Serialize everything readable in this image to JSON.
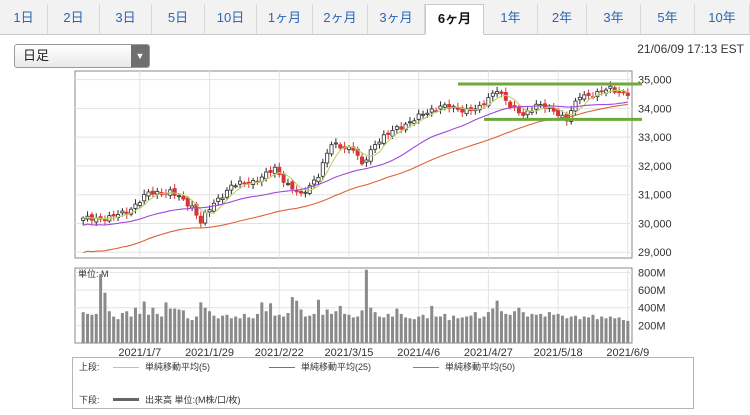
{
  "tabs": [
    {
      "label": "1日",
      "active": false
    },
    {
      "label": "2日",
      "active": false
    },
    {
      "label": "3日",
      "active": false
    },
    {
      "label": "5日",
      "active": false
    },
    {
      "label": "10日",
      "active": false
    },
    {
      "label": "1ヶ月",
      "active": false
    },
    {
      "label": "2ヶ月",
      "active": false
    },
    {
      "label": "3ヶ月",
      "active": false
    },
    {
      "label": "6ヶ月",
      "active": true
    },
    {
      "label": "1年",
      "active": false
    },
    {
      "label": "2年",
      "active": false
    },
    {
      "label": "3年",
      "active": false
    },
    {
      "label": "5年",
      "active": false
    },
    {
      "label": "10年",
      "active": false
    }
  ],
  "period_select": {
    "value": "日足"
  },
  "timestamp": "21/06/09 17:13 EST",
  "legend": {
    "upper_label": "上段:",
    "lower_label": "下段:",
    "items": [
      {
        "label": "単純移動平均(5)",
        "color": "#b9d36a"
      },
      {
        "label": "単純移動平均(25)",
        "color": "#a04ad8"
      },
      {
        "label": "単純移動平均(50)",
        "color": "#e0623a"
      }
    ],
    "volume_label": "出来高 単位:(M株/口/枚)"
  },
  "chart_data": [
    {
      "type": "candlestick",
      "y_ticks": [
        29000,
        30000,
        31000,
        32000,
        33000,
        34000,
        35000
      ],
      "y_tick_labels": [
        "29,000",
        "30,000",
        "31,000",
        "32,000",
        "33,000",
        "34,000",
        "35,000"
      ],
      "ylim": [
        28800,
        35300
      ],
      "x_tick_labels": [
        "2021/1/7",
        "2021/1/29",
        "2021/2/22",
        "2021/3/15",
        "2021/4/6",
        "2021/4/27",
        "2021/5/18",
        "2021/6/9"
      ],
      "x_tick_index": [
        13,
        29,
        45,
        61,
        77,
        93,
        109,
        125
      ],
      "bars_count": 126,
      "close_anchors": [
        [
          0,
          30150
        ],
        [
          6,
          30200
        ],
        [
          10,
          30400
        ],
        [
          15,
          31050
        ],
        [
          20,
          31100
        ],
        [
          25,
          30600
        ],
        [
          27,
          30050
        ],
        [
          30,
          30700
        ],
        [
          34,
          31300
        ],
        [
          40,
          31500
        ],
        [
          44,
          31900
        ],
        [
          47,
          31350
        ],
        [
          50,
          30950
        ],
        [
          54,
          31700
        ],
        [
          57,
          32750
        ],
        [
          62,
          32600
        ],
        [
          64,
          32000
        ],
        [
          67,
          32800
        ],
        [
          72,
          33300
        ],
        [
          77,
          33700
        ],
        [
          82,
          34100
        ],
        [
          86,
          33950
        ],
        [
          91,
          34000
        ],
        [
          95,
          34700
        ],
        [
          98,
          34050
        ],
        [
          101,
          33800
        ],
        [
          104,
          34100
        ],
        [
          108,
          33950
        ],
        [
          111,
          33600
        ],
        [
          114,
          34450
        ],
        [
          118,
          34500
        ],
        [
          121,
          34700
        ],
        [
          125,
          34500
        ]
      ],
      "guide_lines": [
        {
          "y": 34850,
          "from": 86,
          "to": 126
        },
        {
          "y": 33620,
          "from": 92,
          "to": 126
        }
      ],
      "guide_color": "#6ea83a",
      "ma": [
        {
          "period": 5,
          "color": "#b9d36a"
        },
        {
          "period": 25,
          "color": "#a04ad8"
        },
        {
          "period": 50,
          "color": "#e0623a"
        }
      ],
      "up_color": "#2b2b2b",
      "down_color": "#d73434"
    },
    {
      "type": "bar",
      "title": "単位: M",
      "y_ticks": [
        200,
        400,
        600,
        800
      ],
      "y_tick_labels": [
        "200M",
        "400M",
        "600M",
        "800M"
      ],
      "ylim": [
        0,
        850
      ],
      "values": [
        350,
        330,
        320,
        330,
        780,
        570,
        360,
        300,
        270,
        340,
        360,
        300,
        400,
        330,
        470,
        320,
        400,
        330,
        300,
        460,
        390,
        390,
        380,
        370,
        280,
        260,
        300,
        460,
        400,
        360,
        310,
        280,
        310,
        320,
        280,
        300,
        280,
        330,
        290,
        280,
        330,
        460,
        360,
        450,
        310,
        320,
        300,
        340,
        520,
        480,
        380,
        300,
        310,
        330,
        490,
        320,
        380,
        330,
        360,
        420,
        330,
        320,
        290,
        300,
        370,
        830,
        400,
        350,
        300,
        290,
        330,
        300,
        390,
        330,
        290,
        280,
        270,
        300,
        320,
        280,
        420,
        300,
        300,
        330,
        260,
        310,
        280,
        290,
        300,
        310,
        350,
        280,
        300,
        350,
        390,
        480,
        360,
        330,
        320,
        360,
        400,
        350,
        300,
        330,
        320,
        330,
        300,
        350,
        320,
        330,
        310,
        280,
        300,
        310,
        270,
        300,
        290,
        320,
        270,
        300,
        280,
        300,
        280,
        290,
        260,
        250
      ],
      "bar_color": "#8a8a8a"
    }
  ]
}
